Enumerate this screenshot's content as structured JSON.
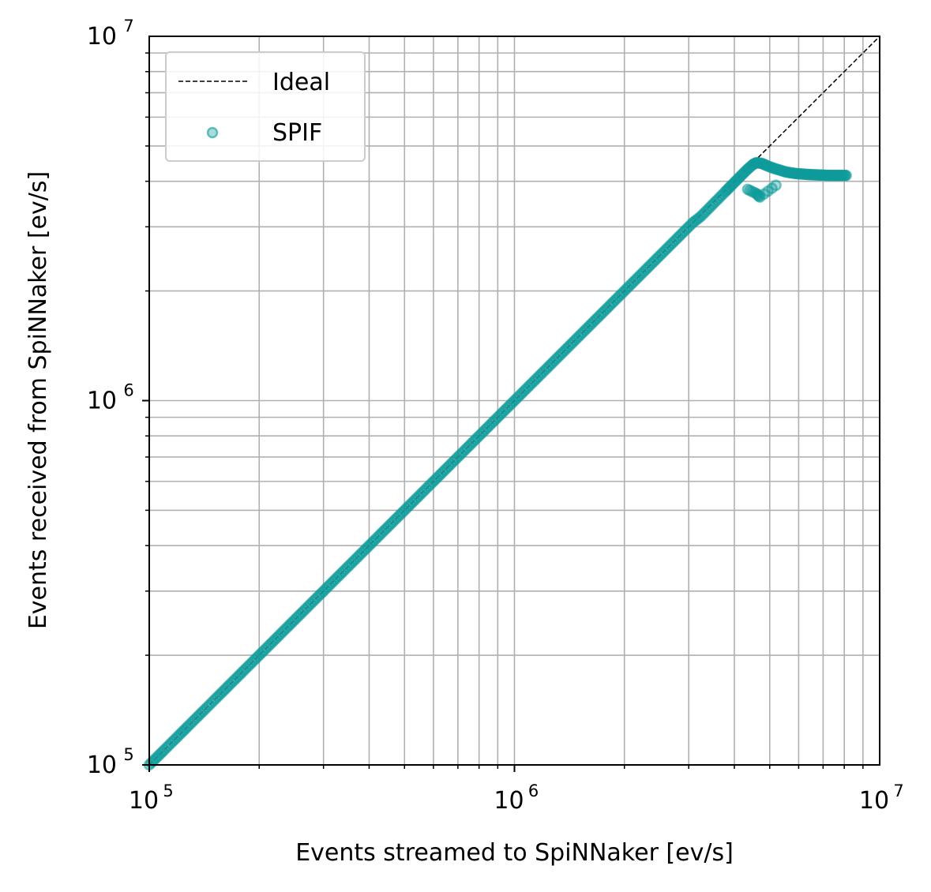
{
  "chart_data": {
    "type": "scatter",
    "xlabel": "Events streamed to SpiNNaker [ev/s]",
    "ylabel": "Events received from SpiNNaker [ev/s]",
    "xscale": "log",
    "yscale": "log",
    "xlim": [
      100000,
      10000000
    ],
    "ylim": [
      100000,
      10000000
    ],
    "grid": "major and minor",
    "legend_position": "upper-left",
    "x_ticks": [
      {
        "base": "10",
        "exp": "5"
      },
      {
        "base": "10",
        "exp": "6"
      },
      {
        "base": "10",
        "exp": "7"
      }
    ],
    "y_ticks": [
      {
        "base": "10",
        "exp": "5"
      },
      {
        "base": "10",
        "exp": "6"
      },
      {
        "base": "10",
        "exp": "7"
      }
    ],
    "series": [
      {
        "name": "Ideal",
        "kind": "line",
        "style": "dashed",
        "color": "#000000",
        "x": [
          100000,
          10000000
        ],
        "y": [
          100000,
          10000000
        ]
      },
      {
        "name": "SPIF",
        "kind": "scatter",
        "color": "#0f9a9a",
        "x": [
          100000,
          105000,
          110000,
          116000,
          122000,
          128000,
          135000,
          142000,
          150000,
          158000,
          166000,
          175000,
          184000,
          194000,
          204000,
          215000,
          226000,
          238000,
          250000,
          263000,
          277000,
          292000,
          307000,
          323000,
          340000,
          358000,
          377000,
          397000,
          418000,
          440000,
          463000,
          487000,
          512000,
          539000,
          567000,
          597000,
          628000,
          661000,
          696000,
          733000,
          771000,
          812000,
          854000,
          899000,
          946000,
          996000,
          1048000,
          1103000,
          1161000,
          1222000,
          1286000,
          1354000,
          1425000,
          1500000,
          1579000,
          1662000,
          1749000,
          1841000,
          1938000,
          2040000,
          2147000,
          2260000,
          2379000,
          2504000,
          2636000,
          2774000,
          2920000,
          3074000,
          3235000,
          3405000,
          3584000,
          3773000,
          3900000,
          4050000,
          4200000,
          4350000,
          4500000,
          4600000,
          4750000,
          4900000,
          5100000,
          5300000,
          5500000,
          5700000,
          5900000,
          6100000,
          6300000,
          6500000,
          6700000,
          6900000,
          7100000,
          7300000,
          7500000,
          7700000,
          7900000,
          8100000,
          4350000,
          4600000,
          4700000,
          5200000
        ],
        "y": [
          100000,
          105000,
          110000,
          116000,
          122000,
          128000,
          135000,
          142000,
          150000,
          158000,
          166000,
          175000,
          184000,
          194000,
          204000,
          215000,
          226000,
          238000,
          250000,
          263000,
          277000,
          292000,
          307000,
          323000,
          340000,
          358000,
          377000,
          397000,
          418000,
          440000,
          463000,
          487000,
          512000,
          539000,
          567000,
          597000,
          628000,
          661000,
          696000,
          733000,
          771000,
          812000,
          854000,
          899000,
          946000,
          996000,
          1048000,
          1103000,
          1161000,
          1222000,
          1286000,
          1354000,
          1425000,
          1500000,
          1579000,
          1662000,
          1749000,
          1841000,
          1938000,
          2040000,
          2147000,
          2260000,
          2379000,
          2504000,
          2636000,
          2774000,
          2920000,
          3074000,
          3200000,
          3370000,
          3550000,
          3740000,
          3870000,
          4020000,
          4170000,
          4320000,
          4450000,
          4500000,
          4480000,
          4420000,
          4350000,
          4300000,
          4250000,
          4220000,
          4200000,
          4190000,
          4180000,
          4170000,
          4165000,
          4160000,
          4155000,
          4150000,
          4150000,
          4150000,
          4150000,
          4150000,
          3800000,
          3700000,
          3620000,
          3900000
        ]
      }
    ]
  }
}
